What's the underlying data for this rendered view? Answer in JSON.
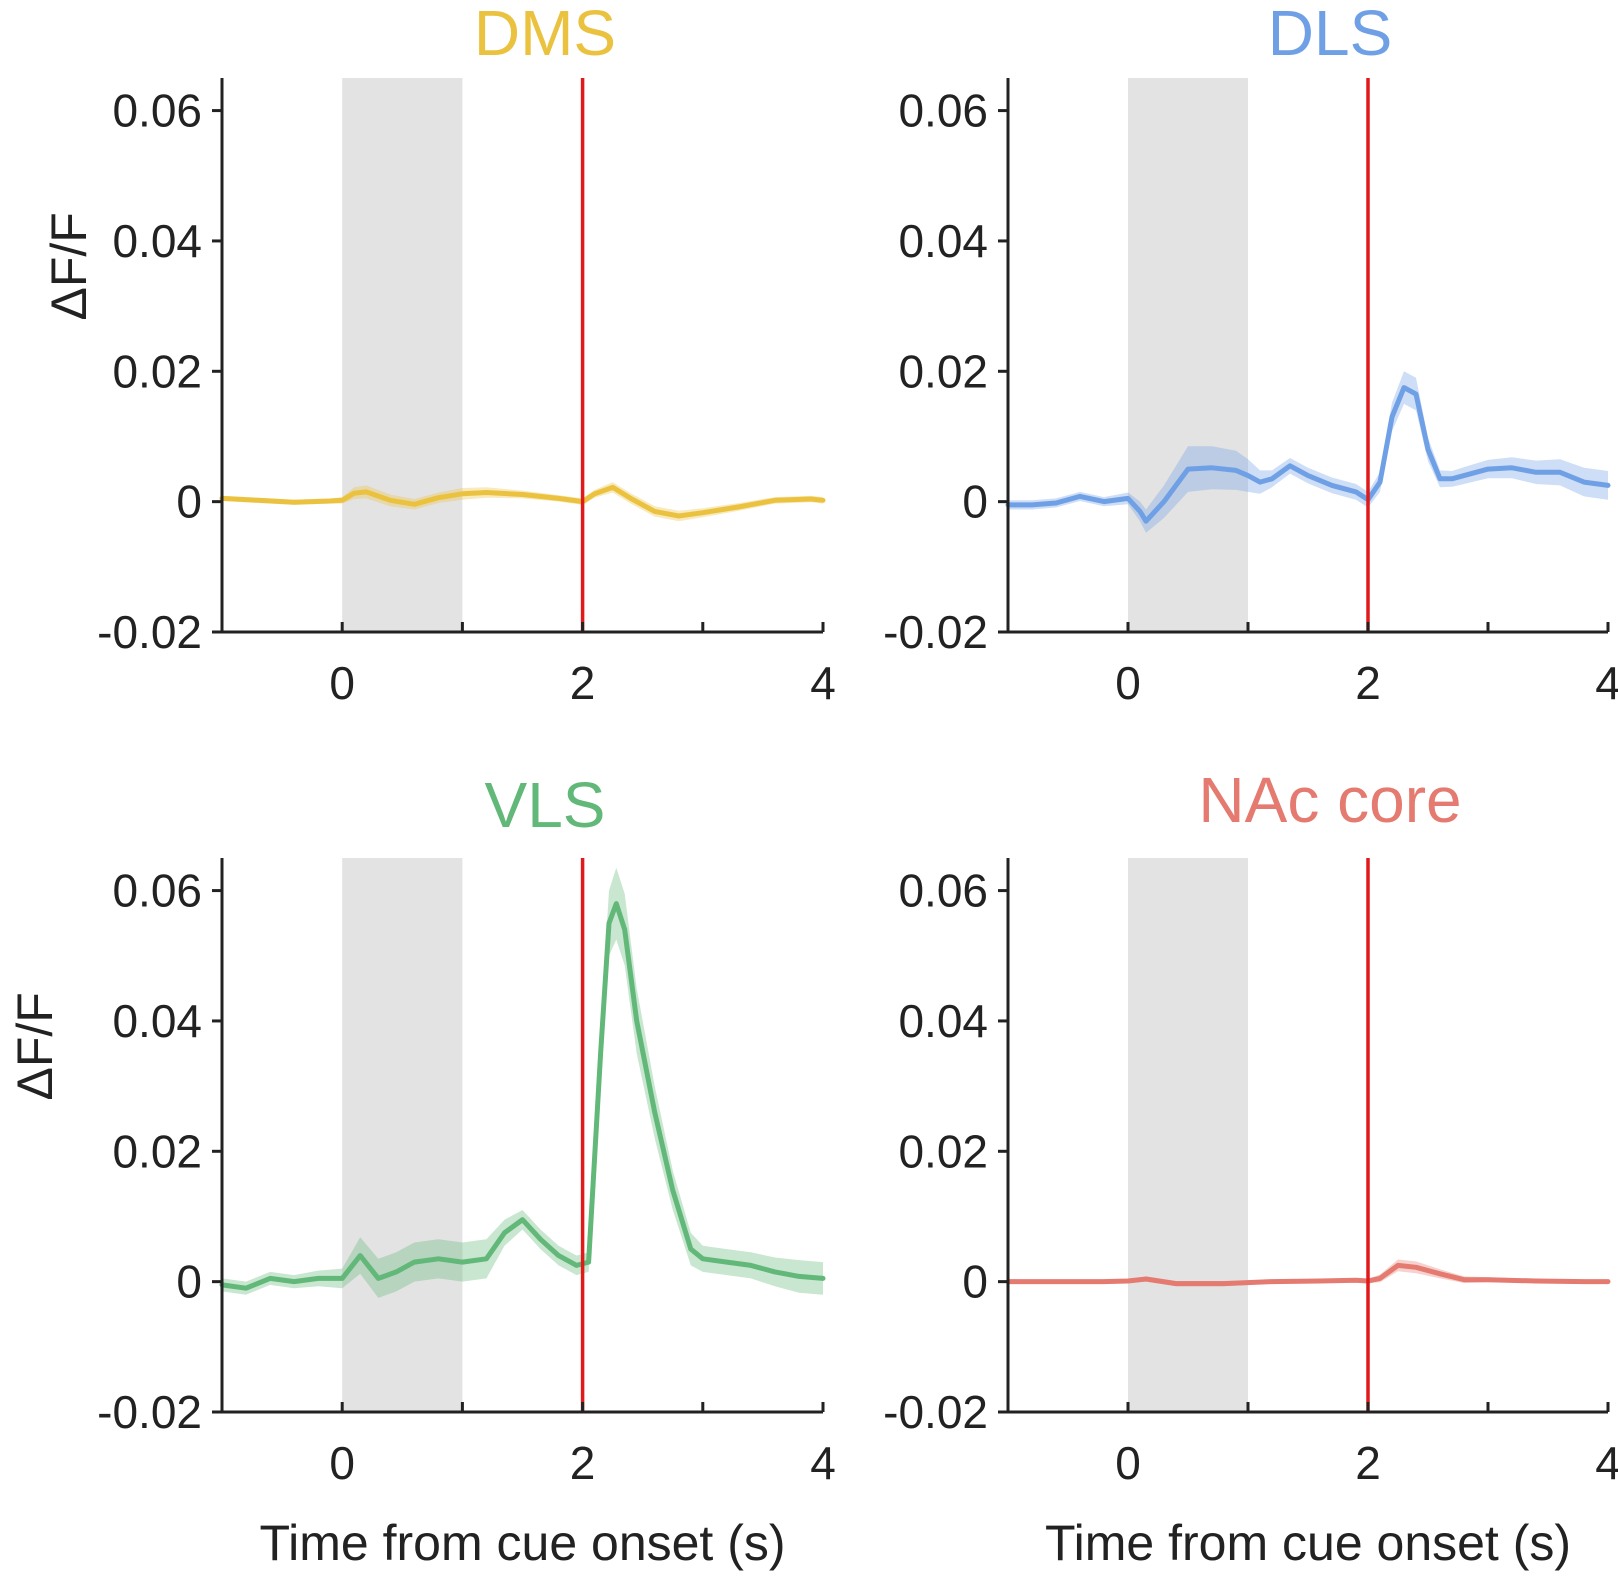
{
  "chart_data": [
    {
      "type": "line",
      "title": "DMS",
      "color": "#EBC23F",
      "xlabel": "",
      "ylabel": "ΔF/F",
      "xlim": [
        -1,
        4
      ],
      "ylim": [
        -0.02,
        0.065
      ],
      "xticks": [
        0,
        2,
        4
      ],
      "xtick_labels": [
        "0",
        "2",
        "4"
      ],
      "yticks": [
        -0.02,
        0,
        0.02,
        0.04,
        0.06
      ],
      "ytick_labels": [
        "-0.02",
        "0",
        "0.02",
        "0.04",
        "0.06"
      ],
      "shaded_interval": [
        0,
        1
      ],
      "event_line": 2,
      "series": [
        {
          "name": "DMS",
          "x": [
            -1,
            -0.7,
            -0.4,
            -0.1,
            0,
            0.1,
            0.2,
            0.4,
            0.6,
            0.8,
            1.0,
            1.2,
            1.5,
            1.8,
            2.0,
            2.1,
            2.25,
            2.4,
            2.6,
            2.8,
            3.0,
            3.3,
            3.6,
            3.9,
            4.0
          ],
          "y": [
            0.0005,
            0.0002,
            -0.0001,
            0.0001,
            0.0002,
            0.0013,
            0.0015,
            0.0002,
            -0.0004,
            0.0006,
            0.0012,
            0.0014,
            0.0011,
            0.0005,
            0.0,
            0.0012,
            0.0022,
            0.0005,
            -0.0015,
            -0.0022,
            -0.0017,
            -0.0008,
            0.0002,
            0.0004,
            0.0002
          ],
          "sem": [
            0.0004,
            0.0004,
            0.0004,
            0.0004,
            0.0005,
            0.0009,
            0.001,
            0.0009,
            0.0008,
            0.0008,
            0.0009,
            0.0008,
            0.0006,
            0.0005,
            0.0005,
            0.0006,
            0.0008,
            0.0008,
            0.0008,
            0.0008,
            0.0007,
            0.0006,
            0.0005,
            0.0005,
            0.0005
          ]
        }
      ]
    },
    {
      "type": "line",
      "title": "DLS",
      "color": "#6FA0E6",
      "xlabel": "",
      "ylabel": "",
      "xlim": [
        -1,
        4
      ],
      "ylim": [
        -0.02,
        0.065
      ],
      "xticks": [
        0,
        2,
        4
      ],
      "xtick_labels": [
        "0",
        "2",
        "4"
      ],
      "yticks": [
        -0.02,
        0,
        0.02,
        0.04,
        0.06
      ],
      "ytick_labels": [
        "-0.02",
        "0",
        "0.02",
        "0.04",
        "0.06"
      ],
      "shaded_interval": [
        0,
        1
      ],
      "event_line": 2,
      "series": [
        {
          "name": "DLS",
          "x": [
            -1,
            -0.8,
            -0.6,
            -0.4,
            -0.2,
            0,
            0.1,
            0.15,
            0.3,
            0.5,
            0.7,
            0.9,
            1.0,
            1.1,
            1.2,
            1.35,
            1.5,
            1.7,
            1.9,
            2.0,
            2.1,
            2.2,
            2.3,
            2.4,
            2.5,
            2.6,
            2.7,
            2.8,
            3.0,
            3.2,
            3.4,
            3.6,
            3.8,
            4.0
          ],
          "y": [
            -0.0005,
            -0.0005,
            -0.0002,
            0.0008,
            0.0,
            0.0005,
            -0.0015,
            -0.003,
            0.0,
            0.005,
            0.0052,
            0.0048,
            0.004,
            0.003,
            0.0035,
            0.0055,
            0.004,
            0.0025,
            0.0015,
            0.0003,
            0.003,
            0.013,
            0.0175,
            0.0165,
            0.008,
            0.0035,
            0.0035,
            0.004,
            0.005,
            0.0052,
            0.0045,
            0.0045,
            0.003,
            0.0025
          ],
          "sem": [
            0.0007,
            0.0007,
            0.0007,
            0.0007,
            0.0007,
            0.0009,
            0.0015,
            0.0018,
            0.0025,
            0.0035,
            0.0033,
            0.003,
            0.0025,
            0.0018,
            0.0013,
            0.0012,
            0.0012,
            0.0012,
            0.0012,
            0.0012,
            0.0015,
            0.0022,
            0.0025,
            0.0025,
            0.0018,
            0.0013,
            0.0012,
            0.0013,
            0.0014,
            0.0016,
            0.0018,
            0.002,
            0.0022,
            0.0022
          ]
        }
      ]
    },
    {
      "type": "line",
      "title": "VLS",
      "color": "#62B878",
      "xlabel": "Time from cue onset (s)",
      "ylabel": "ΔF/F",
      "xlim": [
        -1,
        4
      ],
      "ylim": [
        -0.02,
        0.065
      ],
      "xticks": [
        0,
        2,
        4
      ],
      "xtick_labels": [
        "0",
        "2",
        "4"
      ],
      "yticks": [
        -0.02,
        0,
        0.02,
        0.04,
        0.06
      ],
      "ytick_labels": [
        "-0.02",
        "0",
        "0.02",
        "0.04",
        "0.06"
      ],
      "shaded_interval": [
        0,
        1
      ],
      "event_line": 2,
      "series": [
        {
          "name": "VLS",
          "x": [
            -1,
            -0.8,
            -0.6,
            -0.4,
            -0.2,
            0,
            0.15,
            0.3,
            0.45,
            0.6,
            0.8,
            1.0,
            1.2,
            1.35,
            1.5,
            1.65,
            1.8,
            1.95,
            2.05,
            2.15,
            2.22,
            2.28,
            2.35,
            2.45,
            2.6,
            2.75,
            2.9,
            3.0,
            3.2,
            3.4,
            3.6,
            3.8,
            4.0
          ],
          "y": [
            -0.0005,
            -0.001,
            0.0005,
            0.0,
            0.0005,
            0.0005,
            0.004,
            0.0005,
            0.0015,
            0.003,
            0.0035,
            0.003,
            0.0035,
            0.0075,
            0.0095,
            0.0065,
            0.004,
            0.0025,
            0.003,
            0.035,
            0.055,
            0.058,
            0.054,
            0.04,
            0.026,
            0.014,
            0.005,
            0.0035,
            0.003,
            0.0025,
            0.0015,
            0.0008,
            0.0005
          ],
          "sem": [
            0.001,
            0.001,
            0.001,
            0.001,
            0.0012,
            0.0015,
            0.0028,
            0.003,
            0.003,
            0.003,
            0.003,
            0.003,
            0.003,
            0.002,
            0.0015,
            0.0015,
            0.0015,
            0.0015,
            0.0015,
            0.004,
            0.005,
            0.0055,
            0.0055,
            0.005,
            0.004,
            0.003,
            0.0025,
            0.002,
            0.002,
            0.002,
            0.0022,
            0.0025,
            0.0025
          ]
        }
      ]
    },
    {
      "type": "line",
      "title": "NAc core",
      "color": "#E47A70",
      "xlabel": "Time from cue onset (s)",
      "ylabel": "",
      "xlim": [
        -1,
        4
      ],
      "ylim": [
        -0.02,
        0.065
      ],
      "xticks": [
        0,
        2,
        4
      ],
      "xtick_labels": [
        "0",
        "2",
        "4"
      ],
      "yticks": [
        -0.02,
        0,
        0.02,
        0.04,
        0.06
      ],
      "ytick_labels": [
        "-0.02",
        "0",
        "0.02",
        "0.04",
        "0.06"
      ],
      "shaded_interval": [
        0,
        1
      ],
      "event_line": 2,
      "series": [
        {
          "name": "NAc core",
          "x": [
            -1,
            -0.6,
            -0.2,
            0,
            0.15,
            0.4,
            0.8,
            1.2,
            1.6,
            1.9,
            2.0,
            2.1,
            2.25,
            2.4,
            2.6,
            2.8,
            3.0,
            3.4,
            3.8,
            4.0
          ],
          "y": [
            0.0,
            0.0,
            0.0,
            0.0001,
            0.0004,
            -0.0003,
            -0.0003,
            0.0,
            0.0001,
            0.0002,
            0.0001,
            0.0005,
            0.0025,
            0.0022,
            0.0012,
            0.0003,
            0.0003,
            0.0001,
            0.0,
            0.0
          ],
          "sem": [
            0.0003,
            0.0003,
            0.0003,
            0.0003,
            0.0004,
            0.0004,
            0.0004,
            0.0003,
            0.0003,
            0.0003,
            0.0003,
            0.0006,
            0.0009,
            0.0009,
            0.0007,
            0.0005,
            0.0004,
            0.0003,
            0.0003,
            0.0003
          ]
        }
      ]
    }
  ]
}
